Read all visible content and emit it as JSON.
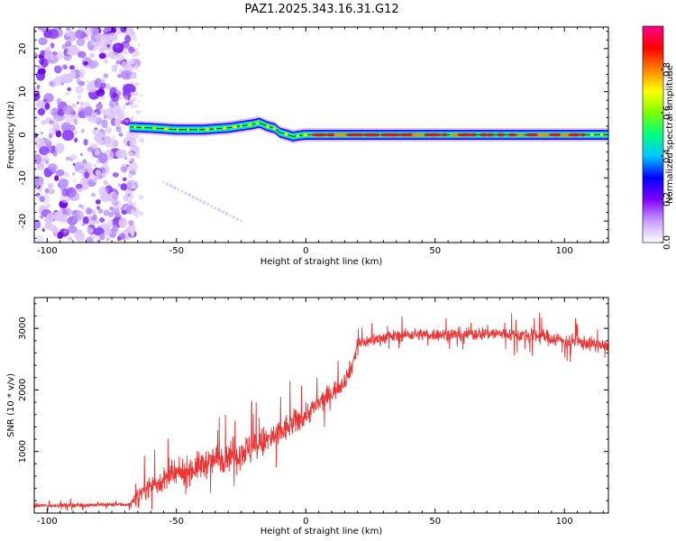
{
  "title": "PAZ1.2025.343.16.31.G12",
  "chart_data": [
    {
      "type": "heatmap",
      "name": "spectrogram",
      "xlabel": "Height of straight line (km)",
      "ylabel": "Frequency (Hz)",
      "xlim": [
        -105,
        117
      ],
      "ylim": [
        -25,
        25
      ],
      "x_ticks": [
        -100,
        -50,
        0,
        50,
        100
      ],
      "x_tick_labels": [
        "-100",
        "-50",
        "0",
        "50",
        "100"
      ],
      "y_ticks": [
        -20,
        -10,
        0,
        10,
        20
      ],
      "y_tick_labels": [
        "-20",
        "-10",
        "0",
        "10",
        "20"
      ],
      "noise_region_x": [
        -105,
        -68
      ],
      "ridge": {
        "x": [
          -68,
          -60,
          -50,
          -40,
          -30,
          -20,
          -18,
          -15,
          -12,
          -10,
          -7,
          -5,
          -3,
          0,
          5,
          20,
          40,
          60,
          80,
          100,
          117
        ],
        "freq": [
          1.8,
          1.6,
          1.2,
          1.2,
          1.6,
          2.5,
          2.8,
          2.0,
          1.5,
          0.5,
          0.0,
          -0.4,
          -0.2,
          0.0,
          0.0,
          0.0,
          0.0,
          0.0,
          0.0,
          0.0,
          0.0
        ]
      },
      "peak_amplitude_x_range": [
        5,
        110
      ],
      "faint_branch": {
        "x": [
          -55,
          -25
        ],
        "freq": [
          -11,
          -20
        ]
      },
      "colorbar": {
        "label": "Normalized spectral amplitude",
        "range": [
          0.0,
          1.0
        ],
        "ticks": [
          0.0,
          0.2,
          0.4,
          0.6,
          0.8
        ],
        "tick_labels": [
          "0.0",
          "0.2",
          "0.4",
          "0.6",
          "0.8"
        ],
        "colors": [
          "#ffffff",
          "#c79cff",
          "#7f00ff",
          "#0000ff",
          "#00c8ff",
          "#00ff80",
          "#80ff00",
          "#ffff00",
          "#ff8000",
          "#ff0000",
          "#ff0090"
        ]
      }
    },
    {
      "type": "line",
      "name": "snr",
      "xlabel": "Height of straight line (km)",
      "ylabel": "SNR (10 * v/v)",
      "xlim": [
        -105,
        117
      ],
      "ylim": [
        0,
        3500
      ],
      "x_ticks": [
        -100,
        -50,
        0,
        50,
        100
      ],
      "x_tick_labels": [
        "-100",
        "-50",
        "0",
        "50",
        "100"
      ],
      "y_ticks": [
        1000,
        2000,
        3000
      ],
      "y_tick_labels": [
        "1000",
        "2000",
        "3000"
      ],
      "series": [
        {
          "name": "SNR",
          "color": "#ee3333",
          "envelope_x": [
            -105,
            -68,
            -65,
            -60,
            -50,
            -40,
            -30,
            -20,
            -10,
            0,
            10,
            15,
            18,
            20,
            30,
            40,
            50,
            60,
            70,
            80,
            90,
            100,
            110,
            117
          ],
          "envelope_mean": [
            120,
            140,
            300,
            450,
            620,
            780,
            950,
            1050,
            1300,
            1600,
            1950,
            2150,
            2400,
            2750,
            2850,
            2900,
            2900,
            2900,
            2920,
            2900,
            2880,
            2800,
            2750,
            2700
          ],
          "envelope_noise": [
            60,
            60,
            200,
            320,
            380,
            420,
            460,
            480,
            420,
            350,
            300,
            250,
            260,
            200,
            180,
            180,
            180,
            190,
            200,
            200,
            210,
            230,
            200,
            180
          ]
        }
      ]
    }
  ]
}
